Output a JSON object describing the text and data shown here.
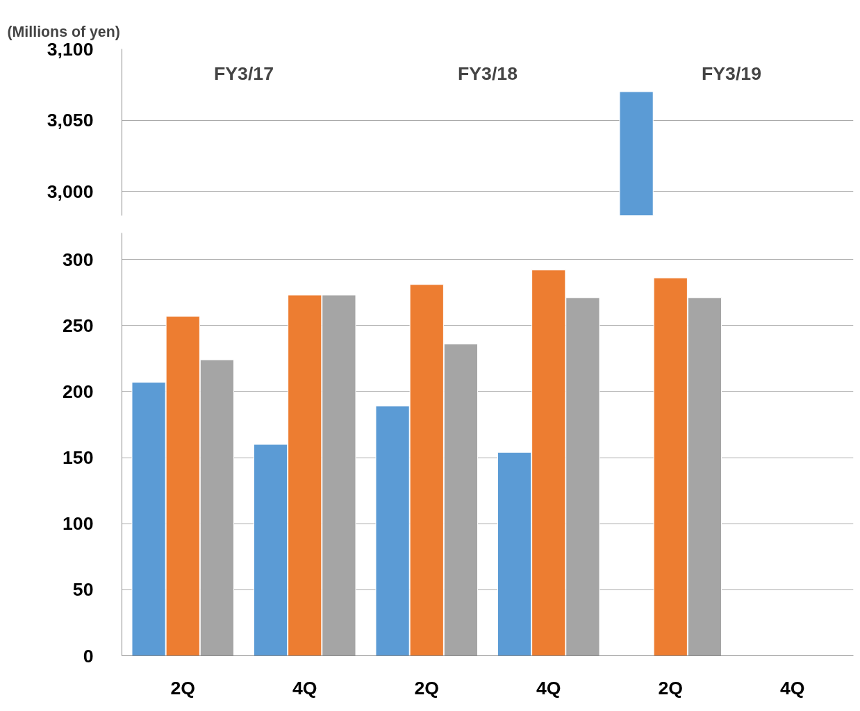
{
  "chart_data": [
    {
      "type": "bar",
      "ylabel": "(Millions of yen)",
      "ylim": [
        2983,
        3100
      ],
      "yticks": [
        {
          "value": 3000,
          "label": "3,000"
        },
        {
          "value": 3050,
          "label": "3,050"
        },
        {
          "value": 3100,
          "label": "3,100"
        }
      ],
      "tick_labels": "y",
      "grid": "y",
      "annotations": [
        "FY3/17",
        "FY3/18",
        "FY3/19"
      ],
      "series": [
        {
          "color": "#5b9bd5",
          "values": [
            null,
            null,
            null,
            null,
            3070,
            null
          ]
        }
      ]
    },
    {
      "type": "bar",
      "categories": [
        "2Q",
        "4Q",
        "2Q",
        "4Q",
        "2Q",
        "4Q"
      ],
      "ylim": [
        0,
        320
      ],
      "yticks": [
        0,
        50,
        100,
        150,
        200,
        250,
        300
      ],
      "grid": "y",
      "series": [
        {
          "color": "#5b9bd5",
          "values": [
            207,
            160,
            189,
            154,
            null,
            null
          ]
        },
        {
          "color": "#ed7d31",
          "values": [
            257,
            273,
            281,
            292,
            286,
            null
          ]
        },
        {
          "color": "#a5a5a5",
          "values": [
            224,
            273,
            236,
            271,
            271,
            null
          ]
        }
      ]
    }
  ]
}
